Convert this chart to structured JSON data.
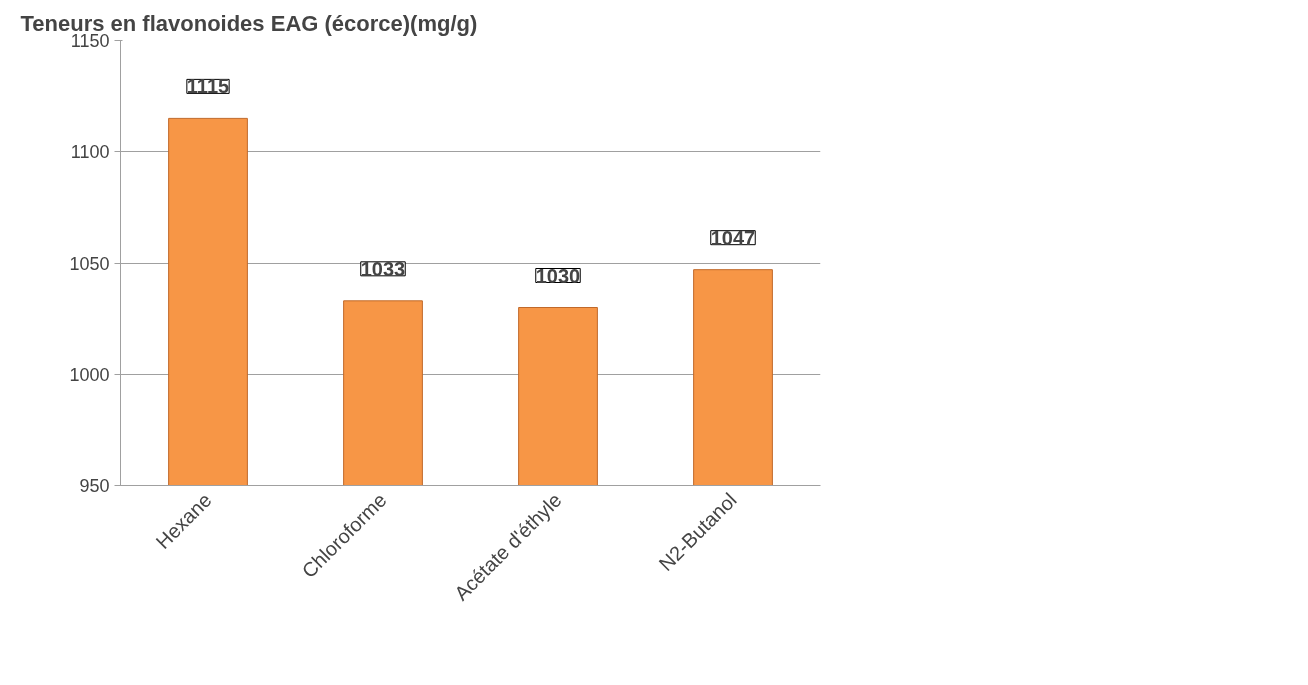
{
  "chart_data": {
    "type": "bar",
    "title": "Teneurs en flavonoides EAG (écorce)(mg/g)",
    "categories": [
      "Hexane",
      "Chloroforme",
      "Acétate d'éthyle",
      "N2-Butanol"
    ],
    "values": [
      1115,
      1033,
      1030,
      1047
    ],
    "color": "#f79646",
    "ylim": [
      950,
      1150
    ],
    "yticks": [
      950,
      1000,
      1050,
      1100,
      1150
    ],
    "grid": "y",
    "data_labels": true
  }
}
